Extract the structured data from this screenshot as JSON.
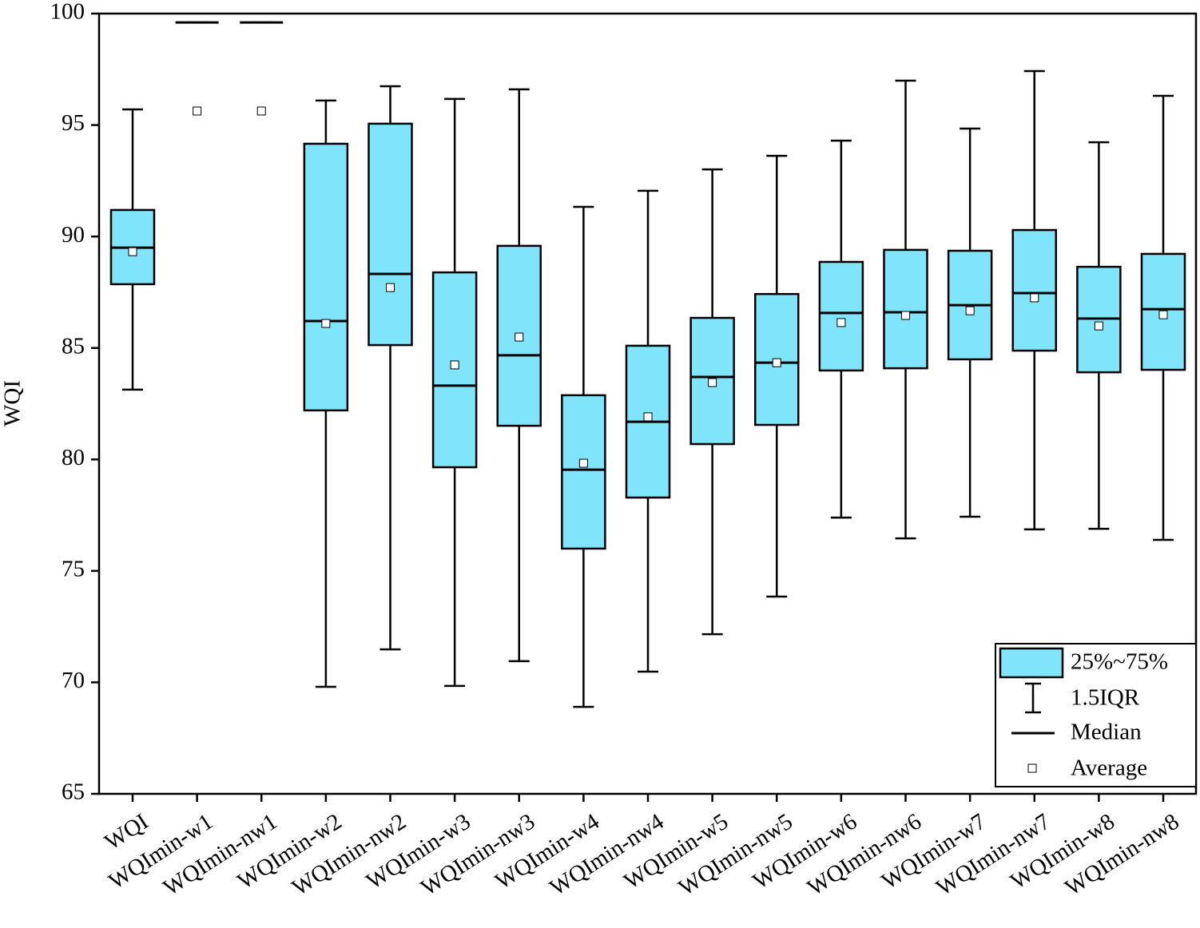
{
  "chart_data": {
    "type": "box",
    "y_label": "WQI",
    "ylim": [
      65,
      100
    ],
    "yticks": [
      65,
      70,
      75,
      80,
      85,
      90,
      95,
      100
    ],
    "color": "#80e4fa",
    "categories": [
      "WQI",
      "WQImin-w1",
      "WQImin-nw1",
      "WQImin-w2",
      "WQImin-nw2",
      "WQImin-w3",
      "WQImin-nw3",
      "WQImin-w4",
      "WQImin-nw4",
      "WQImin-w5",
      "WQImin-nw5",
      "WQImin-w6",
      "WQImin-nw6",
      "WQImin-w7",
      "WQImin-nw7",
      "WQImin-w8",
      "WQImin-nw8"
    ],
    "boxes": [
      {
        "low": 83.13,
        "q1": 87.86,
        "median": 89.5,
        "q3": 91.19,
        "high": 95.7,
        "mean": 89.32
      },
      {
        "low": 99.6,
        "q1": 99.6,
        "median": 99.6,
        "q3": 99.6,
        "high": 99.6,
        "mean": 95.63
      },
      {
        "low": 99.6,
        "q1": 99.6,
        "median": 99.6,
        "q3": 99.6,
        "high": 99.6,
        "mean": 95.63
      },
      {
        "low": 69.8,
        "q1": 82.2,
        "median": 86.21,
        "q3": 94.16,
        "high": 96.1,
        "mean": 86.1
      },
      {
        "low": 71.48,
        "q1": 85.13,
        "median": 88.32,
        "q3": 95.06,
        "high": 96.74,
        "mean": 87.71
      },
      {
        "low": 69.84,
        "q1": 79.65,
        "median": 83.31,
        "q3": 88.39,
        "high": 96.17,
        "mean": 84.24
      },
      {
        "low": 70.95,
        "q1": 81.51,
        "median": 84.67,
        "q3": 89.58,
        "high": 96.6,
        "mean": 85.49
      },
      {
        "low": 68.9,
        "q1": 76.0,
        "median": 79.54,
        "q3": 82.88,
        "high": 91.33,
        "mean": 79.83
      },
      {
        "low": 70.48,
        "q1": 78.29,
        "median": 81.69,
        "q3": 85.1,
        "high": 92.05,
        "mean": 81.91
      },
      {
        "low": 72.16,
        "q1": 80.69,
        "median": 83.7,
        "q3": 86.35,
        "high": 93.01,
        "mean": 83.45
      },
      {
        "low": 73.85,
        "q1": 81.55,
        "median": 84.34,
        "q3": 87.42,
        "high": 93.62,
        "mean": 84.34
      },
      {
        "low": 77.39,
        "q1": 83.99,
        "median": 86.57,
        "q3": 88.86,
        "high": 94.3,
        "mean": 86.14
      },
      {
        "low": 76.46,
        "q1": 84.09,
        "median": 86.6,
        "q3": 89.4,
        "high": 96.99,
        "mean": 86.46
      },
      {
        "low": 77.43,
        "q1": 84.49,
        "median": 86.92,
        "q3": 89.36,
        "high": 94.84,
        "mean": 86.67
      },
      {
        "low": 76.86,
        "q1": 84.88,
        "median": 87.46,
        "q3": 90.29,
        "high": 97.42,
        "mean": 87.25
      },
      {
        "low": 76.89,
        "q1": 83.91,
        "median": 86.32,
        "q3": 88.64,
        "high": 94.23,
        "mean": 85.99
      },
      {
        "low": 76.39,
        "q1": 84.02,
        "median": 86.74,
        "q3": 89.22,
        "high": 96.31,
        "mean": 86.49
      }
    ],
    "legend": {
      "box": "25%~75%",
      "whisker": "1.5IQR",
      "median": "Median",
      "mean": "Average"
    }
  }
}
